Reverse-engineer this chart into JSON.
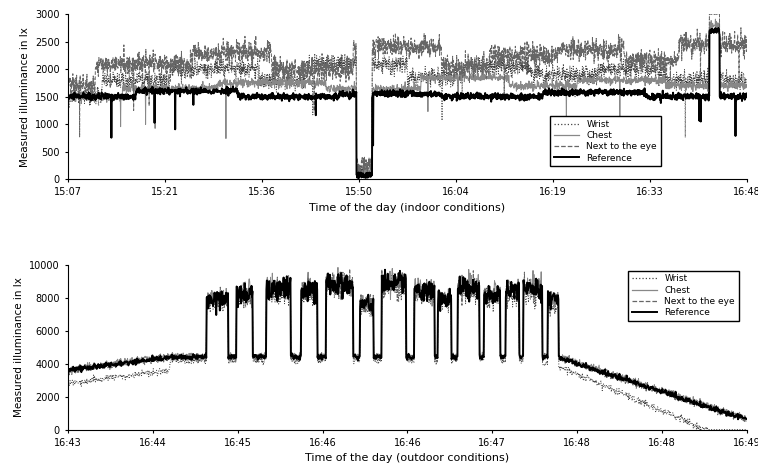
{
  "top_plot": {
    "xlabel": "Time of the day (indoor conditions)",
    "ylabel": "Measured illuminance in lx",
    "xtick_labels": [
      "15:07",
      "15:21",
      "15:36",
      "15:50",
      "16:04",
      "16:19",
      "16:33",
      "16:48"
    ],
    "ylim": [
      0,
      3000
    ],
    "yticks": [
      0,
      500,
      1000,
      1500,
      2000,
      2500,
      3000
    ],
    "n_points": 2500
  },
  "bottom_plot": {
    "xlabel": "Time of the day (outdoor conditions)",
    "ylabel": "Measured illuminance in lx",
    "xtick_labels": [
      "16:43",
      "16:44",
      "16:45",
      "16:46",
      "16:46",
      "16:47",
      "16:48",
      "16:48",
      "16:49"
    ],
    "ylim": [
      0,
      10000
    ],
    "yticks": [
      0,
      2000,
      4000,
      6000,
      8000,
      10000
    ],
    "n_points": 1500
  },
  "legend_labels": [
    "Wrist",
    "Chest",
    "Next to the eye",
    "Reference"
  ],
  "line_styles": {
    "wrist": {
      "linestyle": ":",
      "color": "#444444",
      "linewidth": 0.7
    },
    "chest": {
      "linestyle": "-",
      "color": "#888888",
      "linewidth": 0.7
    },
    "eye": {
      "linestyle": "--",
      "color": "#666666",
      "linewidth": 0.7
    },
    "reference": {
      "linestyle": "-",
      "color": "#000000",
      "linewidth": 1.4
    }
  },
  "figure_bgcolor": "#ffffff",
  "axes_bgcolor": "#ffffff"
}
